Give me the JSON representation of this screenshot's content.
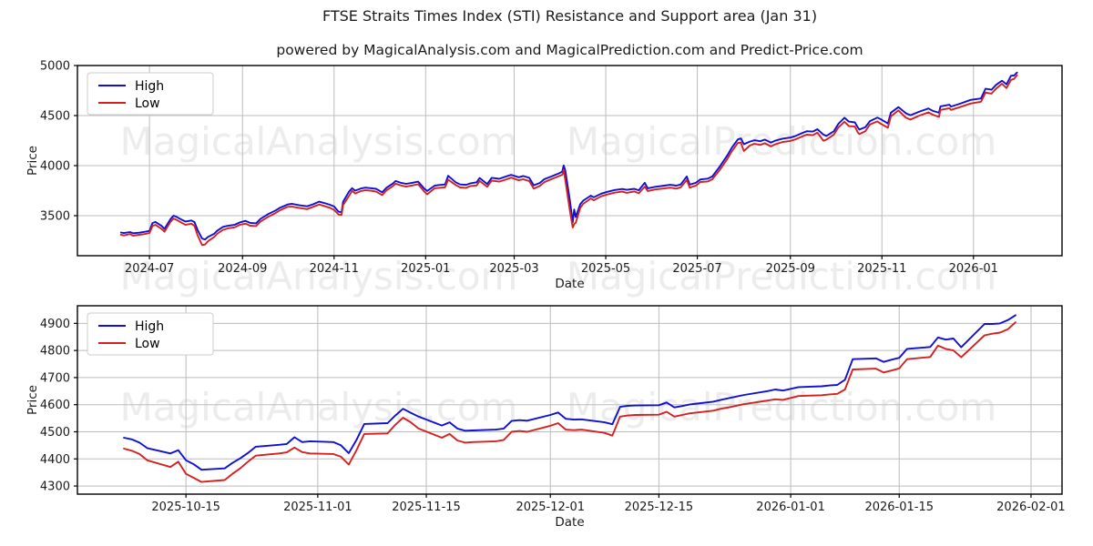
{
  "title": "FTSE Straits Times Index (STI) Resistance and Support area (Jan 31)",
  "subtitle": "powered by MagicalAnalysis.com and MagicalPrediction.com and Predict-Price.com",
  "watermarks": {
    "left": "MagicalAnalysis.com",
    "right": "MagicalPrediction.com"
  },
  "colors": {
    "high": "#0f0fd6",
    "low": "#d62020",
    "grid": "#bcbcbc",
    "watermark": "#ececec"
  },
  "chart_data": [
    {
      "type": "line",
      "title": "",
      "xlabel": "Date",
      "ylabel": "Price",
      "legend_position": "upper left",
      "grid": true,
      "xlim": [
        "2024-05-14",
        "2026-03-01"
      ],
      "ylim": [
        3100,
        5000
      ],
      "y_ticks": [
        3500,
        4000,
        4500,
        5000
      ],
      "x_ticks": [
        {
          "date": "2024-07-01",
          "label": "2024-07"
        },
        {
          "date": "2024-09-01",
          "label": "2024-09"
        },
        {
          "date": "2024-11-01",
          "label": "2024-11"
        },
        {
          "date": "2025-01-01",
          "label": "2025-01"
        },
        {
          "date": "2025-03-01",
          "label": "2025-03"
        },
        {
          "date": "2025-05-01",
          "label": "2025-05"
        },
        {
          "date": "2025-07-01",
          "label": "2025-07"
        },
        {
          "date": "2025-09-01",
          "label": "2025-09"
        },
        {
          "date": "2025-11-01",
          "label": "2025-11"
        },
        {
          "date": "2026-01-01",
          "label": "2026-01"
        }
      ],
      "x": [
        "2024-06-12",
        "2024-06-14",
        "2024-06-18",
        "2024-06-20",
        "2024-06-24",
        "2024-06-27",
        "2024-07-01",
        "2024-07-03",
        "2024-07-05",
        "2024-07-09",
        "2024-07-11",
        "2024-07-15",
        "2024-07-17",
        "2024-07-19",
        "2024-07-23",
        "2024-07-25",
        "2024-07-29",
        "2024-07-31",
        "2024-08-02",
        "2024-08-05",
        "2024-08-07",
        "2024-08-09",
        "2024-08-13",
        "2024-08-15",
        "2024-08-19",
        "2024-08-22",
        "2024-08-27",
        "2024-08-30",
        "2024-09-03",
        "2024-09-06",
        "2024-09-10",
        "2024-09-13",
        "2024-09-18",
        "2024-09-23",
        "2024-09-26",
        "2024-10-01",
        "2024-10-04",
        "2024-10-09",
        "2024-10-14",
        "2024-10-18",
        "2024-10-22",
        "2024-10-25",
        "2024-10-29",
        "2024-11-01",
        "2024-11-04",
        "2024-11-06",
        "2024-11-07",
        "2024-11-11",
        "2024-11-13",
        "2024-11-15",
        "2024-11-19",
        "2024-11-22",
        "2024-11-26",
        "2024-11-29",
        "2024-12-03",
        "2024-12-06",
        "2024-12-10",
        "2024-12-12",
        "2024-12-16",
        "2024-12-19",
        "2024-12-23",
        "2024-12-27",
        "2024-12-31",
        "2025-01-02",
        "2025-01-07",
        "2025-01-10",
        "2025-01-14",
        "2025-01-16",
        "2025-01-21",
        "2025-01-24",
        "2025-01-28",
        "2025-01-31",
        "2025-02-04",
        "2025-02-06",
        "2025-02-11",
        "2025-02-14",
        "2025-02-19",
        "2025-02-24",
        "2025-02-27",
        "2025-03-04",
        "2025-03-07",
        "2025-03-11",
        "2025-03-14",
        "2025-03-18",
        "2025-03-21",
        "2025-03-26",
        "2025-03-31",
        "2025-04-02",
        "2025-04-03",
        "2025-04-04",
        "2025-04-07",
        "2025-04-09",
        "2025-04-10",
        "2025-04-11",
        "2025-04-14",
        "2025-04-16",
        "2025-04-21",
        "2025-04-23",
        "2025-04-28",
        "2025-05-02",
        "2025-05-07",
        "2025-05-12",
        "2025-05-15",
        "2025-05-20",
        "2025-05-23",
        "2025-05-27",
        "2025-05-29",
        "2025-06-03",
        "2025-06-09",
        "2025-06-13",
        "2025-06-17",
        "2025-06-20",
        "2025-06-24",
        "2025-06-26",
        "2025-06-30",
        "2025-07-03",
        "2025-07-08",
        "2025-07-11",
        "2025-07-16",
        "2025-07-21",
        "2025-07-24",
        "2025-07-28",
        "2025-07-30",
        "2025-08-01",
        "2025-08-05",
        "2025-08-08",
        "2025-08-12",
        "2025-08-15",
        "2025-08-19",
        "2025-08-22",
        "2025-08-27",
        "2025-09-01",
        "2025-09-04",
        "2025-09-09",
        "2025-09-12",
        "2025-09-16",
        "2025-09-19",
        "2025-09-23",
        "2025-09-25",
        "2025-09-30",
        "2025-10-03",
        "2025-10-07",
        "2025-10-10",
        "2025-10-14",
        "2025-10-16",
        "2025-10-17",
        "2025-10-21",
        "2025-10-24",
        "2025-10-29",
        "2025-10-31",
        "2025-11-05",
        "2025-11-07",
        "2025-11-12",
        "2025-11-17",
        "2025-11-20",
        "2025-11-26",
        "2025-12-02",
        "2025-12-05",
        "2025-12-09",
        "2025-12-10",
        "2025-12-16",
        "2025-12-17",
        "2025-12-23",
        "2025-12-30",
        "2026-01-06",
        "2026-01-09",
        "2026-01-13",
        "2026-01-16",
        "2026-01-20",
        "2026-01-23",
        "2026-01-26",
        "2026-01-28",
        "2026-01-30"
      ],
      "series": [
        {
          "name": "High",
          "color": "#0f0fd6",
          "values": [
            3332,
            3326,
            3336,
            3325,
            3330,
            3336,
            3348,
            3426,
            3437,
            3398,
            3368,
            3465,
            3500,
            3488,
            3455,
            3442,
            3452,
            3436,
            3360,
            3272,
            3262,
            3288,
            3318,
            3348,
            3388,
            3398,
            3410,
            3432,
            3448,
            3428,
            3424,
            3468,
            3515,
            3552,
            3580,
            3612,
            3618,
            3604,
            3594,
            3614,
            3640,
            3628,
            3610,
            3592,
            3540,
            3534,
            3640,
            3742,
            3775,
            3750,
            3772,
            3780,
            3774,
            3768,
            3734,
            3780,
            3820,
            3846,
            3826,
            3818,
            3828,
            3840,
            3772,
            3746,
            3800,
            3806,
            3812,
            3898,
            3834,
            3812,
            3808,
            3824,
            3834,
            3876,
            3816,
            3878,
            3868,
            3894,
            3908,
            3884,
            3896,
            3878,
            3804,
            3826,
            3864,
            3894,
            3924,
            3942,
            4002,
            3952,
            3662,
            3434,
            3562,
            3486,
            3614,
            3650,
            3700,
            3684,
            3720,
            3738,
            3756,
            3766,
            3758,
            3768,
            3754,
            3828,
            3774,
            3788,
            3800,
            3808,
            3800,
            3812,
            3892,
            3810,
            3828,
            3862,
            3870,
            3892,
            3992,
            4102,
            4180,
            4262,
            4272,
            4214,
            4240,
            4254,
            4244,
            4260,
            4230,
            4250,
            4270,
            4280,
            4294,
            4326,
            4344,
            4340,
            4364,
            4310,
            4296,
            4344,
            4418,
            4478,
            4440,
            4432,
            4380,
            4360,
            4385,
            4445,
            4480,
            4465,
            4421,
            4529,
            4585,
            4523,
            4504,
            4540,
            4571,
            4546,
            4528,
            4592,
            4608,
            4590,
            4618,
            4656,
            4671,
            4768,
            4758,
            4806,
            4848,
            4812,
            4898,
            4900,
            4930
          ]
        },
        {
          "name": "Low",
          "color": "#d62020",
          "values": [
            3310,
            3303,
            3316,
            3300,
            3309,
            3315,
            3326,
            3398,
            3408,
            3368,
            3340,
            3438,
            3472,
            3458,
            3425,
            3408,
            3420,
            3398,
            3308,
            3206,
            3212,
            3245,
            3285,
            3318,
            3358,
            3372,
            3385,
            3408,
            3420,
            3400,
            3396,
            3442,
            3488,
            3526,
            3555,
            3588,
            3590,
            3576,
            3565,
            3588,
            3612,
            3598,
            3580,
            3558,
            3512,
            3508,
            3605,
            3700,
            3748,
            3722,
            3746,
            3754,
            3748,
            3740,
            3706,
            3754,
            3794,
            3820,
            3800,
            3790,
            3802,
            3814,
            3742,
            3714,
            3774,
            3778,
            3784,
            3860,
            3806,
            3782,
            3778,
            3796,
            3802,
            3846,
            3788,
            3850,
            3840,
            3864,
            3880,
            3854,
            3864,
            3846,
            3770,
            3796,
            3834,
            3866,
            3896,
            3908,
            3960,
            3855,
            3560,
            3382,
            3418,
            3428,
            3576,
            3618,
            3672,
            3654,
            3694,
            3712,
            3730,
            3740,
            3728,
            3742,
            3724,
            3790,
            3746,
            3762,
            3772,
            3780,
            3770,
            3784,
            3856,
            3780,
            3800,
            3836,
            3842,
            3864,
            3958,
            4066,
            4144,
            4226,
            4230,
            4146,
            4200,
            4218,
            4206,
            4224,
            4192,
            4214,
            4236,
            4246,
            4260,
            4292,
            4310,
            4304,
            4330,
            4248,
            4260,
            4310,
            4382,
            4438,
            4395,
            4390,
            4330,
            4315,
            4345,
            4412,
            4442,
            4420,
            4379,
            4492,
            4552,
            4478,
            4460,
            4500,
            4532,
            4508,
            4486,
            4556,
            4574,
            4556,
            4585,
            4620,
            4638,
            4730,
            4719,
            4768,
            4818,
            4775,
            4856,
            4866,
            4904
          ]
        }
      ]
    },
    {
      "type": "line",
      "title": "",
      "xlabel": "Date",
      "ylabel": "Price",
      "legend_position": "upper left",
      "grid": true,
      "xlim": [
        "2025-10-01",
        "2026-02-05"
      ],
      "ylim": [
        4270,
        4965
      ],
      "y_ticks": [
        4300,
        4400,
        4500,
        4600,
        4700,
        4800,
        4900
      ],
      "x_ticks": [
        {
          "date": "2025-10-15",
          "label": "2025-10-15"
        },
        {
          "date": "2025-11-01",
          "label": "2025-11-01"
        },
        {
          "date": "2025-11-15",
          "label": "2025-11-15"
        },
        {
          "date": "2025-12-01",
          "label": "2025-12-01"
        },
        {
          "date": "2025-12-15",
          "label": "2025-12-15"
        },
        {
          "date": "2026-01-01",
          "label": "2026-01-01"
        },
        {
          "date": "2026-01-15",
          "label": "2026-01-15"
        },
        {
          "date": "2026-02-01",
          "label": "2026-02-01"
        }
      ],
      "x": [
        "2025-10-07",
        "2025-10-08",
        "2025-10-09",
        "2025-10-10",
        "2025-10-13",
        "2025-10-14",
        "2025-10-15",
        "2025-10-16",
        "2025-10-17",
        "2025-10-20",
        "2025-10-21",
        "2025-10-22",
        "2025-10-23",
        "2025-10-24",
        "2025-10-27",
        "2025-10-28",
        "2025-10-29",
        "2025-10-30",
        "2025-10-31",
        "2025-11-03",
        "2025-11-04",
        "2025-11-05",
        "2025-11-06",
        "2025-11-07",
        "2025-11-10",
        "2025-11-11",
        "2025-11-12",
        "2025-11-13",
        "2025-11-14",
        "2025-11-17",
        "2025-11-18",
        "2025-11-19",
        "2025-11-20",
        "2025-11-21",
        "2025-11-24",
        "2025-11-25",
        "2025-11-26",
        "2025-11-27",
        "2025-11-28",
        "2025-12-01",
        "2025-12-02",
        "2025-12-03",
        "2025-12-04",
        "2025-12-05",
        "2025-12-08",
        "2025-12-09",
        "2025-12-10",
        "2025-12-11",
        "2025-12-12",
        "2025-12-15",
        "2025-12-16",
        "2025-12-17",
        "2025-12-18",
        "2025-12-19",
        "2025-12-22",
        "2025-12-23",
        "2025-12-24",
        "2025-12-26",
        "2025-12-29",
        "2025-12-30",
        "2025-12-31",
        "2026-01-02",
        "2026-01-05",
        "2026-01-06",
        "2026-01-07",
        "2026-01-08",
        "2026-01-09",
        "2026-01-12",
        "2026-01-13",
        "2026-01-14",
        "2026-01-15",
        "2026-01-16",
        "2026-01-19",
        "2026-01-20",
        "2026-01-21",
        "2026-01-22",
        "2026-01-23",
        "2026-01-26",
        "2026-01-27",
        "2026-01-28",
        "2026-01-29",
        "2026-01-30"
      ],
      "series": [
        {
          "name": "High",
          "color": "#0f0fd6",
          "values": [
            4478,
            4472,
            4460,
            4440,
            4420,
            4432,
            4395,
            4380,
            4360,
            4365,
            4385,
            4402,
            4422,
            4445,
            4452,
            4455,
            4480,
            4462,
            4465,
            4462,
            4450,
            4421,
            4470,
            4529,
            4532,
            4560,
            4585,
            4570,
            4556,
            4523,
            4535,
            4512,
            4504,
            4505,
            4508,
            4512,
            4540,
            4543,
            4541,
            4562,
            4571,
            4548,
            4545,
            4546,
            4535,
            4528,
            4592,
            4596,
            4597,
            4598,
            4608,
            4590,
            4595,
            4601,
            4611,
            4618,
            4624,
            4636,
            4650,
            4656,
            4652,
            4665,
            4668,
            4671,
            4673,
            4692,
            4768,
            4771,
            4758,
            4766,
            4773,
            4806,
            4813,
            4848,
            4840,
            4844,
            4812,
            4898,
            4898,
            4900,
            4912,
            4930
          ]
        },
        {
          "name": "Low",
          "color": "#d62020",
          "values": [
            4438,
            4430,
            4418,
            4395,
            4370,
            4390,
            4345,
            4330,
            4315,
            4322,
            4345,
            4365,
            4390,
            4412,
            4420,
            4424,
            4442,
            4425,
            4420,
            4418,
            4408,
            4379,
            4432,
            4492,
            4494,
            4526,
            4552,
            4535,
            4512,
            4478,
            4492,
            4468,
            4460,
            4462,
            4465,
            4470,
            4500,
            4503,
            4500,
            4522,
            4532,
            4508,
            4506,
            4508,
            4496,
            4486,
            4556,
            4560,
            4562,
            4563,
            4574,
            4556,
            4562,
            4568,
            4578,
            4585,
            4590,
            4602,
            4615,
            4620,
            4618,
            4632,
            4635,
            4638,
            4640,
            4656,
            4730,
            4733,
            4719,
            4726,
            4734,
            4768,
            4776,
            4818,
            4806,
            4800,
            4775,
            4856,
            4862,
            4866,
            4878,
            4904
          ]
        }
      ]
    }
  ]
}
